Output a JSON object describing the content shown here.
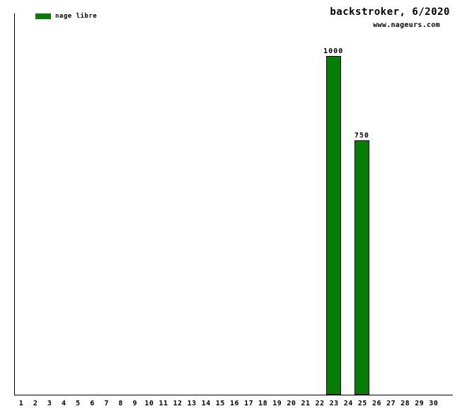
{
  "header": {
    "title": "backstroker, 6/2020",
    "website": "www.nageurs.com"
  },
  "legend": {
    "label": "nage libre",
    "swatch_color": "#067e06"
  },
  "colors": {
    "bar_fill": "#067e06",
    "bar_border": "#000000",
    "axis": "#000000",
    "background": "#ffffff",
    "text": "#000000"
  },
  "chart_data": {
    "type": "bar",
    "title": "backstroker, 6/2020",
    "subtitle": "www.nageurs.com",
    "xlabel": "",
    "ylabel": "",
    "categories": [
      "1",
      "2",
      "3",
      "4",
      "5",
      "6",
      "7",
      "8",
      "9",
      "10",
      "11",
      "12",
      "13",
      "14",
      "15",
      "16",
      "17",
      "18",
      "19",
      "20",
      "21",
      "22",
      "23",
      "24",
      "25",
      "26",
      "27",
      "28",
      "29",
      "30"
    ],
    "values": [
      null,
      null,
      null,
      null,
      null,
      null,
      null,
      null,
      null,
      null,
      null,
      null,
      null,
      null,
      null,
      null,
      null,
      null,
      null,
      null,
      null,
      null,
      1000,
      null,
      750,
      null,
      null,
      null,
      null,
      null
    ],
    "series": [
      {
        "name": "nage libre",
        "color": "#067e06",
        "points": [
          {
            "category": "23",
            "value": 1000,
            "label": "1000"
          },
          {
            "category": "25",
            "value": 750,
            "label": "750"
          }
        ]
      }
    ],
    "ylim": [
      0,
      1125
    ],
    "grid": false,
    "y_axis_ticks": false,
    "bar_value_labels": true,
    "legend_position": "top-left"
  }
}
